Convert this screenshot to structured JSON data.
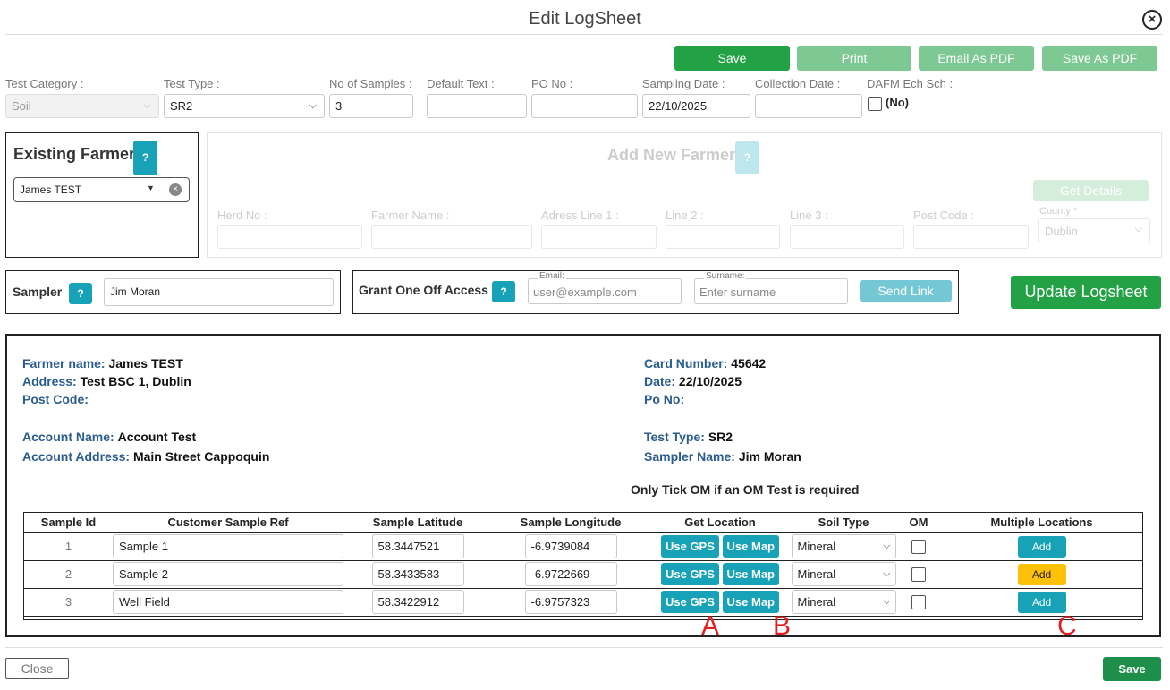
{
  "modal": {
    "title": "Edit LogSheet"
  },
  "toolbar": {
    "save": "Save",
    "print": "Print",
    "email_pdf": "Email As PDF",
    "save_pdf": "Save As PDF"
  },
  "form": {
    "test_category": {
      "label": "Test Category :",
      "value": "Soil"
    },
    "test_type": {
      "label": "Test Type :",
      "value": "SR2"
    },
    "no_samples": {
      "label": "No of Samples :",
      "value": "3"
    },
    "default_text": {
      "label": "Default Text :",
      "value": ""
    },
    "po_no": {
      "label": "PO No :",
      "value": ""
    },
    "sampling_date": {
      "label": "Sampling Date :",
      "value": "22/10/2025"
    },
    "collection_date": {
      "label": "Collection Date :",
      "value": ""
    },
    "dafm": {
      "label": "DAFM Ech Sch :",
      "state": "(No)"
    }
  },
  "existing_farmer": {
    "heading": "Existing Farmer",
    "help": "?",
    "selected": "James TEST"
  },
  "new_farmer": {
    "heading": "Add New Farmer",
    "help": "?",
    "get_details": "Get Details",
    "fields": [
      "Herd No :",
      "Farmer Name :",
      "Adress Line 1 :",
      "Line 2 :",
      "Line 3 :",
      "Post Code :"
    ],
    "county": {
      "label": "County *",
      "value": "Dublin"
    }
  },
  "sampler": {
    "label": "Sampler",
    "help": "?",
    "value": "Jim Moran"
  },
  "grant": {
    "label": "Grant One Off Access",
    "help": "?",
    "email_label": "Email:",
    "email_placeholder": "user@example.com",
    "surname_label": "Surname:",
    "surname_placeholder": "Enter surname",
    "send": "Send Link"
  },
  "update_btn": "Update Logsheet",
  "summary": {
    "farmer_name": {
      "k": "Farmer name:",
      "v": "James TEST"
    },
    "address": {
      "k": "Address:",
      "v": "Test BSC 1, Dublin"
    },
    "post_code": {
      "k": "Post Code:",
      "v": ""
    },
    "account_name": {
      "k": "Account Name:",
      "v": "Account Test"
    },
    "account_address": {
      "k": "Account Address:",
      "v": "Main Street Cappoquin"
    },
    "card_number": {
      "k": "Card Number:",
      "v": "45642"
    },
    "date": {
      "k": "Date:",
      "v": "22/10/2025"
    },
    "po_no": {
      "k": "Po No:",
      "v": ""
    },
    "test_type": {
      "k": "Test Type:",
      "v": "SR2"
    },
    "sampler_name": {
      "k": "Sampler Name:",
      "v": "Jim Moran"
    },
    "om_note": "Only Tick OM if an OM Test is required"
  },
  "table": {
    "headers": [
      "Sample Id",
      "Customer Sample Ref",
      "Sample Latitude",
      "Sample Longitude",
      "Get Location",
      "Soil Type",
      "OM",
      "Multiple Locations"
    ],
    "gps_label": "Use GPS",
    "map_label": "Use Map",
    "add_label": "Add",
    "rows": [
      {
        "id": "1",
        "ref": "Sample 1",
        "lat": "58.3447521",
        "lon": "-6.9739084",
        "soil": "Mineral"
      },
      {
        "id": "2",
        "ref": "Sample 2",
        "lat": "58.3433583",
        "lon": "-6.9722669",
        "soil": "Mineral"
      },
      {
        "id": "3",
        "ref": "Well Field",
        "lat": "58.3422912",
        "lon": "-6.9757323",
        "soil": "Mineral"
      }
    ]
  },
  "annotations": {
    "a": "A",
    "b": "B",
    "c": "C"
  },
  "footer": {
    "close": "Close",
    "save": "Save"
  }
}
